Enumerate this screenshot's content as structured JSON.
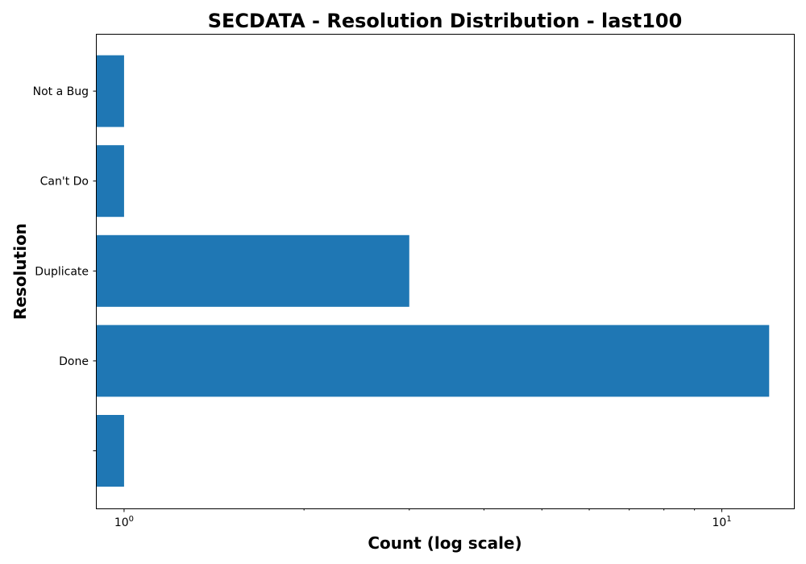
{
  "chart_data": {
    "type": "bar",
    "orientation": "horizontal",
    "title": "SECDATA - Resolution Distribution - last100",
    "xlabel": "Count (log scale)",
    "ylabel": "Resolution",
    "categories": [
      "",
      "Done",
      "Duplicate",
      "Can't Do",
      "Not a Bug"
    ],
    "values": [
      1,
      12,
      3,
      1,
      1
    ],
    "xscale": "log",
    "xlim": [
      0.9,
      13.2
    ],
    "xticks_major": [
      1,
      10
    ],
    "xtick_labels": [
      "10",
      "10"
    ],
    "xtick_exponents": [
      "0",
      "1"
    ],
    "xticks_minor": [
      2,
      3,
      4,
      5,
      6,
      7,
      8,
      9
    ],
    "bar_color": "#1f77b4",
    "grid": false,
    "legend": "none"
  }
}
